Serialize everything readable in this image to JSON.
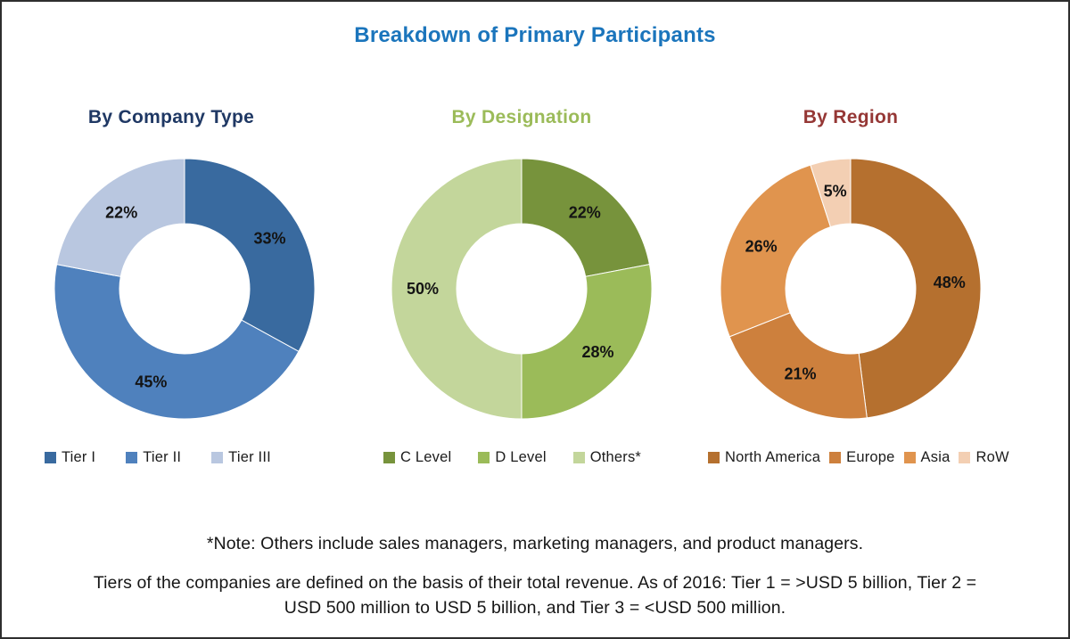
{
  "page": {
    "title": "Breakdown of Primary Participants",
    "title_color": "#1b75bc",
    "background": "#ffffff",
    "border_color": "#2e2e2e"
  },
  "chart_data": [
    {
      "type": "pie",
      "donut": true,
      "title": "By Company Type",
      "title_color": "#1f3864",
      "labels": [
        "Tier I",
        "Tier II",
        "Tier III"
      ],
      "values": [
        33,
        45,
        22
      ],
      "value_labels": [
        "33%",
        "45%",
        "22%"
      ],
      "colors": [
        "#396a9f",
        "#4f81bd",
        "#b9c7e0"
      ],
      "start_angle": 0,
      "direction": "clockwise",
      "legend_position": "bottom"
    },
    {
      "type": "pie",
      "donut": true,
      "title": "By Designation",
      "title_color": "#9bbb59",
      "labels": [
        "C Level",
        "D Level",
        "Others*"
      ],
      "values": [
        22,
        28,
        50
      ],
      "value_labels": [
        "22%",
        "28%",
        "50%"
      ],
      "colors": [
        "#77933c",
        "#9bbb59",
        "#c3d69b"
      ],
      "start_angle": 0,
      "direction": "clockwise",
      "legend_position": "bottom"
    },
    {
      "type": "pie",
      "donut": true,
      "title": "By Region",
      "title_color": "#953735",
      "labels": [
        "North America",
        "Europe",
        "Asia",
        "RoW"
      ],
      "values": [
        48,
        21,
        26,
        5
      ],
      "value_labels": [
        "48%",
        "21%",
        "26%",
        "5%"
      ],
      "colors": [
        "#b5702f",
        "#cd803d",
        "#e0944e",
        "#f3cfb3"
      ],
      "start_angle": 0,
      "direction": "clockwise",
      "legend_position": "bottom"
    }
  ],
  "notes": {
    "note1": "*Note: Others include sales managers, marketing managers, and product managers.",
    "note2_lines": [
      "Tiers of the companies are defined on the basis of their total revenue. As of 2016: Tier 1 = >USD 5 billion, Tier 2 =",
      "USD 500 million to USD 5 billion, and Tier 3 = <USD 500 million."
    ]
  }
}
